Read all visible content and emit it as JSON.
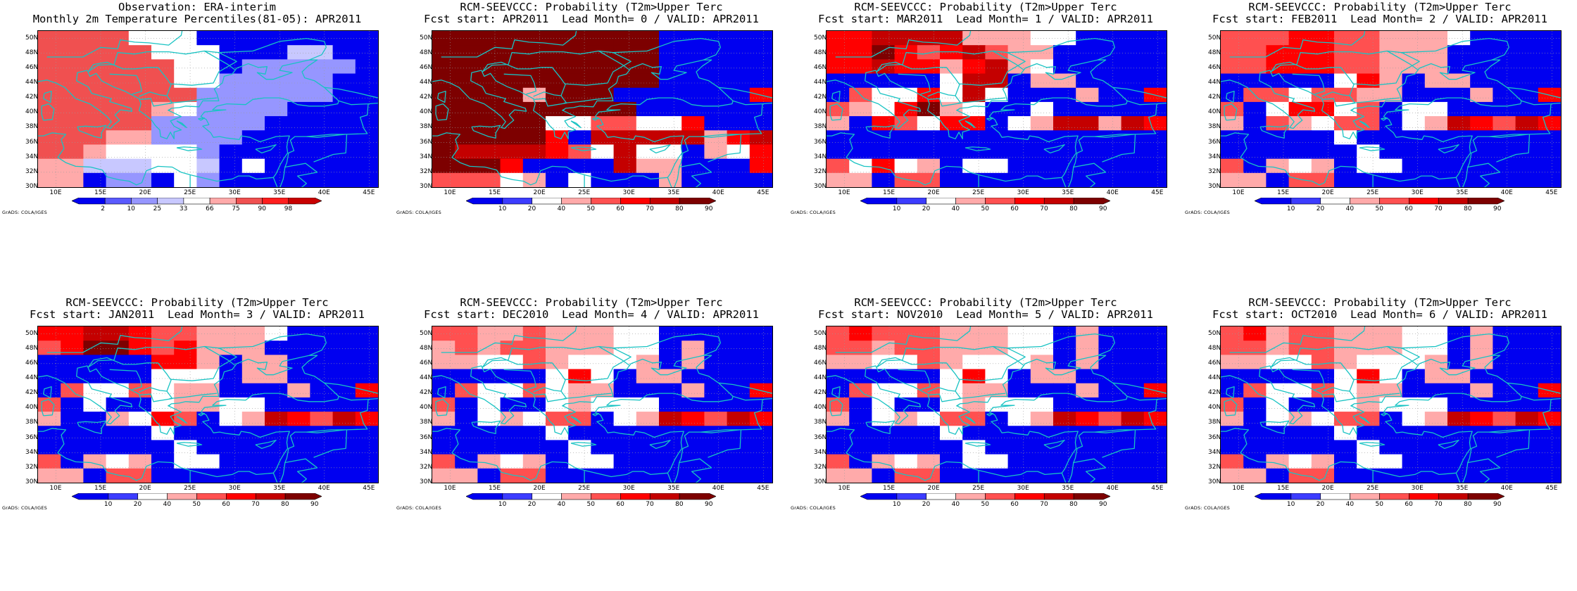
{
  "credit": "GrADS: COLA/IGES",
  "lon_ticks": [
    "10E",
    "15E",
    "20E",
    "25E",
    "30E",
    "35E",
    "40E",
    "45E"
  ],
  "lat_ticks": [
    "50N",
    "48N",
    "46N",
    "44N",
    "42N",
    "40N",
    "38N",
    "36N",
    "34N",
    "32N",
    "30N"
  ],
  "colors": {
    "coast": "#19c3c3",
    "grid": "#9a9a9a"
  },
  "palettes": {
    "prob": [
      "#0000f0",
      "#3c3cff",
      "#ffffff",
      "#ffaaaa",
      "#ff5050",
      "#ff0000",
      "#c40000",
      "#7d0000"
    ],
    "obs": [
      "#0000f0",
      "#5a5aff",
      "#9696ff",
      "#c8c8ff",
      "#ffffff",
      "#ffaaaa",
      "#f05050",
      "#ff1e1e",
      "#c80000"
    ]
  },
  "colorbars": {
    "prob": {
      "labels": [
        "10",
        "20",
        "40",
        "50",
        "60",
        "70",
        "80",
        "90"
      ]
    },
    "obs": {
      "labels": [
        "2",
        "10",
        "25",
        "33",
        "66",
        "75",
        "90",
        "98"
      ]
    }
  },
  "panels": [
    {
      "title1": "Observation: ERA-interim",
      "title2": "Monthly 2m Temperature Percentiles(81-05): APR2011",
      "palette": "obs",
      "grid": [
        "666644400000000",
        "666664440003300",
        "666666440222220",
        "666666442222200",
        "666666622222200",
        "666665422220000",
        "666662222200000",
        "666552222000000",
        "665444420000000",
        "553334430400000",
        "550220420000000"
      ]
    },
    {
      "title1": "RCM-SEEVCCC: Probability (T2m>Upper Terc",
      "title2": "Fcst start: APR2011  Lead Month= 0 / VALID: APR2011",
      "palette": "prob",
      "grid": [
        "777777777700000",
        "777777777700000",
        "777777777700000",
        "777777777700000",
        "777737770000005",
        "777777777000000",
        "777772244225000",
        "777775066666356",
        "766665426220325",
        "777500006330005",
        "444230200030000"
      ]
    },
    {
      "title1": "RCM-SEEVCCC: Probability (T2m>Upper Terc",
      "title2": "Fcst start: MAR2011  Lead Month= 1 / VALID: APR2011",
      "palette": "prob",
      "grid": [
        "556666333220000",
        "557545643300000",
        "556553563200000",
        "000002660330000",
        "042252620003005",
        "432573200200000",
        "305425502366365",
        "000000000000000",
        "000000000000000",
        "425230220000000",
        "330440000000000"
      ]
    },
    {
      "title1": "RCM-SEEVCCC: Probability (T2m>Upper Terc",
      "title2": "Fcst start: FEB2011  Lead Month= 2 / VALID: APR2011",
      "palette": "prob",
      "grid": [
        "444554433320000",
        "445554433300000",
        "445554433300000",
        "000002530330000",
        "044244330003005",
        "402552402200000",
        "304324402365465",
        "000002000000000",
        "000000200000000",
        "403230220000000",
        "330440000000000"
      ]
    },
    {
      "title1": "RCM-SEEVCCC: Probability (T2m>Upper Terc",
      "title2": "Fcst start: JAN2011  Lead Month= 3 / VALID: APR2011",
      "palette": "prob",
      "grid": [
        "556654433320000",
        "457754533300000",
        "000005530330000",
        "000002220330000",
        "042242330003005",
        "402002332200000",
        "300325402365465",
        "000002000000000",
        "000000200000000",
        "403230220000000",
        "330440000000000"
      ]
    },
    {
      "title1": "RCM-SEEVCCC: Probability (T2m>Upper Terc",
      "title2": "Fcst start: DEC2010  Lead Month= 4 / VALID: APR2011",
      "palette": "prob",
      "grid": [
        "443343332200000",
        "343443332203000",
        "332243222303000",
        "000002520330000",
        "042242330003005",
        "402002322200000",
        "302324402365465",
        "000002000000000",
        "000000200000000",
        "403230220000000",
        "330440000000000"
      ]
    },
    {
      "title1": "RCM-SEEVCCC: Probability (T2m>Upper Terc",
      "title2": "Fcst start: NOV2010  Lead Month= 5 / VALID: APR2011",
      "palette": "prob",
      "grid": [
        "454443332203000",
        "443443332203000",
        "332243222303000",
        "000002520330000",
        "042242330003005",
        "402002322200000",
        "302324402365465",
        "000002000000000",
        "000000200000000",
        "403230220000000",
        "330440000000000"
      ]
    },
    {
      "title1": "RCM-SEEVCCC: Probability (T2m>Upper Terc",
      "title2": "Fcst start: OCT2010  Lead Month= 6 / VALID: APR2011",
      "palette": "prob",
      "grid": [
        "453443332203000",
        "443443332203000",
        "332243222303000",
        "000002520330000",
        "042242330003005",
        "402002322200000",
        "302324402365465",
        "000002000000000",
        "000000200000000",
        "403230220000000",
        "330440000000000"
      ]
    }
  ]
}
